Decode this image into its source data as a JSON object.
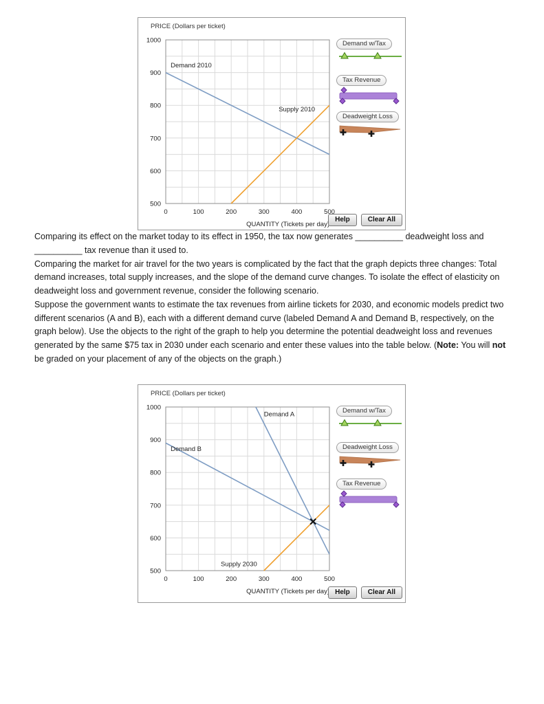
{
  "buttons": {
    "help": "Help",
    "clear_all": "Clear All"
  },
  "paragraphs": {
    "p1": "Comparing its effect on the market today to its effect in 1950, the tax now generates __________ deadweight loss and __________ tax revenue than it used to.",
    "p2": "Comparing the market for air travel for the two years is complicated by the fact that the graph depicts three changes: Total demand increases, total supply increases, and the slope of the demand curve changes. To isolate the effect of elasticity on deadweight loss and government revenue, consider the following scenario.",
    "p3_parts": [
      {
        "text": "Suppose the government wants to estimate the tax revenues from airline tickets for 2030, and economic models predict two different scenarios (A and B), each with a different demand curve (labeled Demand A and Demand B, respectively, on the graph below). Use the objects to the right of the graph to help you determine the potential deadweight loss and revenues generated by the same $75 tax in 2030 under each scenario and enter these values into the table below. (",
        "bold": false
      },
      {
        "text": "Note:",
        "bold": true
      },
      {
        "text": " You will ",
        "bold": false
      },
      {
        "text": "not",
        "bold": true
      },
      {
        "text": " be graded on your placement of any of the objects on the graph.)",
        "bold": false
      }
    ]
  },
  "chart_data": [
    {
      "type": "line",
      "title": "PRICE (Dollars per ticket)",
      "x_axis": {
        "label": "QUANTITY (Tickets per day)",
        "min": 0,
        "max": 500,
        "tick_step": 100,
        "grid_step": 50
      },
      "y_axis": {
        "min": 500,
        "max": 1000,
        "tick_step": 100,
        "grid_step": 50
      },
      "series": [
        {
          "name": "Demand 2010",
          "color": "#7d9cc3",
          "points": [
            [
              0,
              900
            ],
            [
              500,
              650
            ]
          ],
          "label_at": [
            15,
            916
          ]
        },
        {
          "name": "Supply 2010",
          "color": "#efa02f",
          "points": [
            [
              200,
              500
            ],
            [
              500,
              800
            ]
          ],
          "label_at": [
            345,
            782
          ]
        }
      ],
      "markers": [],
      "legend": [
        {
          "type": "demand_tax",
          "label": "Demand w/Tax",
          "color": "#56a228"
        },
        {
          "type": "tax_revenue",
          "label": "Tax Revenue",
          "color": "#ab82d8"
        },
        {
          "type": "deadweight",
          "label": "Deadweight Loss",
          "color": "#c8855a"
        }
      ]
    },
    {
      "type": "line",
      "title": "PRICE (Dollars per ticket)",
      "x_axis": {
        "label": "QUANTITY (Tickets per day)",
        "min": 0,
        "max": 500,
        "tick_step": 100,
        "grid_step": 50
      },
      "y_axis": {
        "min": 500,
        "max": 1000,
        "tick_step": 100,
        "grid_step": 50
      },
      "series": [
        {
          "name": "Demand A",
          "color": "#7d9cc3",
          "points": [
            [
              275,
              1000
            ],
            [
              500,
              550
            ]
          ],
          "label_at": [
            300,
            972
          ]
        },
        {
          "name": "Demand B",
          "color": "#7d9cc3",
          "points": [
            [
              0,
              890
            ],
            [
              500,
              623
            ]
          ],
          "label_at": [
            15,
            866
          ]
        },
        {
          "name": "Supply 2030",
          "color": "#efa02f",
          "points": [
            [
              300,
              500
            ],
            [
              500,
              700
            ]
          ],
          "label_at": [
            168,
            514
          ]
        }
      ],
      "markers": [
        {
          "type": "x",
          "at": [
            450,
            650
          ]
        }
      ],
      "legend": [
        {
          "type": "demand_tax",
          "label": "Demand w/Tax",
          "color": "#56a228"
        },
        {
          "type": "deadweight",
          "label": "Deadweight Loss",
          "color": "#c8855a"
        },
        {
          "type": "tax_revenue",
          "label": "Tax Revenue",
          "color": "#ab82d8"
        }
      ]
    }
  ]
}
